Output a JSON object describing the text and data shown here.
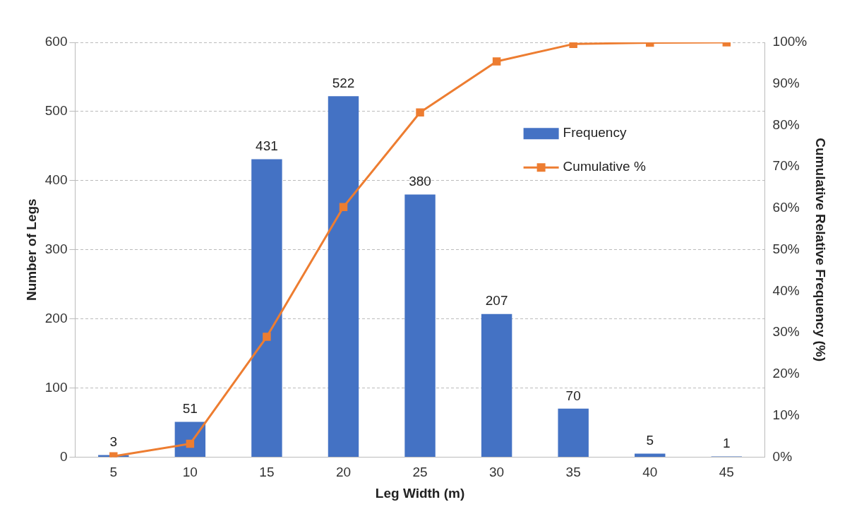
{
  "chart_data": {
    "type": "bar",
    "xlabel": "Leg Width (m)",
    "ylabel": "Number of Legs",
    "y2label": "Cumulative Relative Frequency (%)",
    "categories": [
      "5",
      "10",
      "15",
      "20",
      "25",
      "30",
      "35",
      "40",
      "45"
    ],
    "series": [
      {
        "name": "Frequency",
        "color": "#4472c4",
        "values": [
          3,
          51,
          431,
          522,
          380,
          207,
          70,
          5,
          1
        ],
        "value_labels": [
          "3",
          "51",
          "431",
          "522",
          "380",
          "207",
          "70",
          "5",
          "1"
        ]
      },
      {
        "name": "Cumulative %",
        "type": "line",
        "axis": "y2",
        "color": "#ed7d31",
        "marker": "square",
        "values": [
          0.2,
          3.2,
          29,
          60.3,
          83.1,
          95.4,
          99.6,
          99.9,
          100
        ]
      }
    ],
    "ylim": [
      0,
      600
    ],
    "yticks": [
      0,
      100,
      200,
      300,
      400,
      500,
      600
    ],
    "y2lim": [
      0,
      100
    ],
    "y2ticks": [
      {
        "value": 0,
        "label": "0%"
      },
      {
        "value": 10,
        "label": "10%"
      },
      {
        "value": 20,
        "label": "20%"
      },
      {
        "value": 30,
        "label": "30%"
      },
      {
        "value": 40,
        "label": "40%"
      },
      {
        "value": 50,
        "label": "50%"
      },
      {
        "value": 60,
        "label": "60%"
      },
      {
        "value": 70,
        "label": "70%"
      },
      {
        "value": 80,
        "label": "80%"
      },
      {
        "value": 90,
        "label": "90%"
      },
      {
        "value": 100,
        "label": "100%"
      }
    ],
    "grid": "y",
    "legend": "right"
  }
}
